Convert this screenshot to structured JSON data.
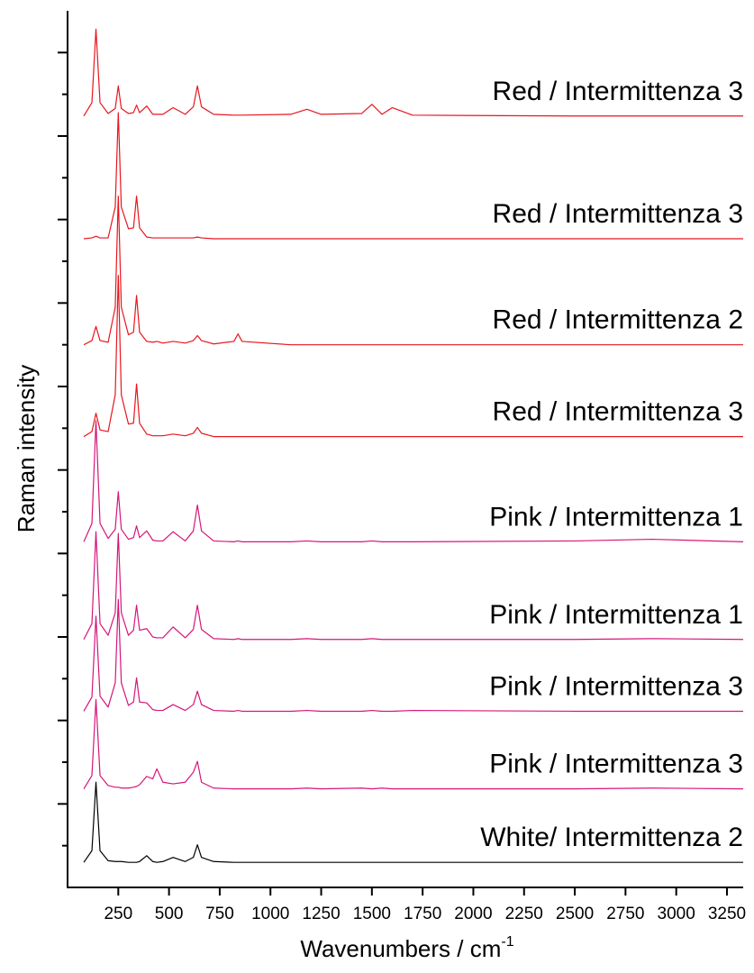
{
  "chart_data": {
    "type": "line",
    "x_label": "Wavenumbers / cm",
    "x_label_superscript": "-1",
    "y_label": "Raman intensity",
    "xlim": [
      0,
      3330
    ],
    "xticks": [
      250,
      500,
      750,
      1000,
      1250,
      1500,
      1750,
      2000,
      2250,
      2500,
      2750,
      3000,
      3250
    ],
    "ylim": [
      0,
      105
    ],
    "yticks": [
      10,
      20,
      30,
      40,
      50,
      60,
      70,
      80,
      90,
      100
    ],
    "yticks_minor": [
      5,
      15,
      25,
      35,
      45,
      55,
      65,
      75,
      85,
      95
    ],
    "grid": false,
    "x": [
      80,
      120,
      140,
      160,
      200,
      235,
      250,
      265,
      300,
      325,
      340,
      355,
      390,
      420,
      440,
      470,
      520,
      580,
      620,
      640,
      660,
      720,
      820,
      840,
      860,
      1100,
      1180,
      1250,
      1450,
      1500,
      1550,
      1600,
      1700,
      2500,
      2880,
      3330
    ],
    "series": [
      {
        "name": "White/ Intermittenza 2",
        "color": "#000000",
        "values": [
          3.0,
          4.4,
          12.6,
          4.4,
          3.2,
          3.1,
          3.1,
          3.1,
          3.0,
          3.0,
          3.0,
          3.1,
          3.8,
          3.1,
          3.0,
          3.1,
          3.6,
          3.1,
          3.6,
          5.1,
          3.6,
          3.1,
          3.0,
          3.0,
          3.0,
          3.0,
          3.0,
          3.0,
          3.0,
          3.0,
          3.0,
          3.0,
          3.0,
          3.0,
          3.0,
          3.0
        ]
      },
      {
        "name": "Pink / Intermittenza 3",
        "color": "#d6157a",
        "values": [
          11.8,
          13.4,
          22.5,
          13.4,
          12.2,
          12.0,
          12.0,
          11.9,
          11.9,
          12.0,
          12.1,
          12.3,
          13.3,
          13.0,
          14.2,
          12.6,
          12.4,
          12.6,
          13.8,
          15.1,
          12.6,
          11.9,
          11.8,
          11.8,
          11.8,
          11.8,
          11.9,
          11.8,
          11.9,
          11.8,
          11.9,
          11.8,
          11.8,
          11.8,
          11.9,
          11.8
        ]
      },
      {
        "name": "Pink / Intermittenza 3",
        "color": "#d6157a",
        "values": [
          21.1,
          22.8,
          32.5,
          22.9,
          21.6,
          24.5,
          34.5,
          24.5,
          21.8,
          22.2,
          25.1,
          22.2,
          22.1,
          21.3,
          21.2,
          21.2,
          21.9,
          21.2,
          21.9,
          23.5,
          21.9,
          21.2,
          21.1,
          21.2,
          21.1,
          21.1,
          21.2,
          21.1,
          21.1,
          21.2,
          21.1,
          21.1,
          21.2,
          21.1,
          21.1,
          21.1
        ]
      },
      {
        "name": "Pink / Intermittenza 1",
        "color": "#d6157a",
        "values": [
          29.7,
          31.6,
          42.6,
          31.6,
          30.2,
          32.9,
          42.4,
          32.9,
          30.2,
          30.8,
          33.8,
          30.8,
          31.0,
          30.0,
          29.9,
          29.9,
          31.2,
          29.9,
          30.9,
          33.8,
          30.9,
          29.8,
          29.7,
          29.8,
          29.7,
          29.7,
          29.8,
          29.7,
          29.7,
          29.8,
          29.7,
          29.7,
          29.7,
          29.7,
          29.8,
          29.7
        ]
      },
      {
        "name": "Pink / Intermittenza 1",
        "color": "#d6157a",
        "values": [
          41.4,
          43.6,
          55.9,
          43.6,
          41.8,
          42.9,
          47.4,
          42.9,
          41.7,
          41.9,
          43.3,
          41.9,
          42.7,
          41.6,
          41.5,
          41.5,
          42.6,
          41.5,
          42.7,
          45.8,
          42.7,
          41.5,
          41.4,
          41.5,
          41.4,
          41.4,
          41.5,
          41.4,
          41.4,
          41.5,
          41.4,
          41.4,
          41.4,
          41.5,
          41.7,
          41.4
        ]
      },
      {
        "name": "Red / Intermittenza 3",
        "color": "#e8161e",
        "values": [
          54.0,
          54.6,
          56.8,
          54.8,
          54.6,
          59.0,
          73.3,
          59.0,
          55.5,
          55.6,
          60.3,
          55.6,
          54.3,
          54.1,
          54.1,
          54.1,
          54.3,
          54.1,
          54.4,
          55.1,
          54.4,
          54.0,
          54.0,
          54.0,
          54.0,
          54.0,
          54.0,
          54.0,
          54.0,
          54.0,
          54.0,
          54.0,
          54.0,
          54.0,
          54.0,
          54.0
        ]
      },
      {
        "name": "Red / Intermittenza 2",
        "color": "#e8161e",
        "values": [
          65.0,
          65.5,
          67.2,
          65.5,
          65.3,
          69.5,
          82.8,
          69.5,
          66.2,
          66.5,
          70.9,
          66.5,
          65.4,
          65.3,
          65.4,
          65.2,
          65.4,
          65.2,
          65.5,
          66.1,
          65.5,
          65.1,
          65.4,
          66.3,
          65.4,
          65.0,
          65.0,
          65.0,
          65.0,
          65.0,
          65.0,
          65.0,
          65.0,
          65.0,
          65.0,
          65.0
        ]
      },
      {
        "name": "Red / Intermittenza 3",
        "color": "#e8161e",
        "values": [
          77.7,
          77.8,
          78.0,
          77.8,
          77.8,
          81.5,
          92.8,
          81.5,
          78.9,
          79.0,
          82.8,
          79.0,
          77.9,
          77.8,
          77.8,
          77.8,
          77.8,
          77.8,
          77.8,
          77.9,
          77.8,
          77.7,
          77.7,
          77.7,
          77.7,
          77.7,
          77.7,
          77.7,
          77.7,
          77.7,
          77.7,
          77.7,
          77.7,
          77.7,
          77.7,
          77.7
        ]
      },
      {
        "name": "Red / Intermittenza 3",
        "color": "#e8161e",
        "values": [
          92.4,
          94.0,
          102.8,
          94.0,
          92.7,
          93.3,
          96.0,
          93.3,
          92.7,
          92.8,
          93.7,
          92.8,
          93.6,
          92.6,
          92.6,
          92.6,
          93.4,
          92.6,
          93.5,
          96.0,
          93.5,
          92.6,
          92.5,
          92.5,
          92.5,
          92.6,
          93.2,
          92.6,
          92.7,
          93.8,
          92.6,
          93.4,
          92.5,
          92.4,
          92.4,
          92.4
        ]
      }
    ]
  }
}
